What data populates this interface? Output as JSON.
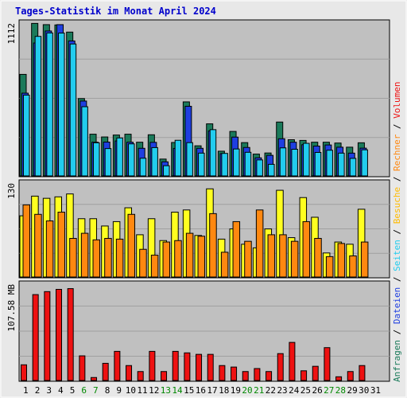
{
  "title": "Tages-Statistik im Monat April 2024",
  "colors": {
    "title": "#0000cc",
    "background": "#e8e8e8",
    "plot_background": "#c0c0c0",
    "grid": "#a0a0a0",
    "anfragen": "#1a7a5a",
    "dateien": "#1e3fe0",
    "seiten": "#22ccee",
    "besuche": "#ffff20",
    "rechner": "#ff8810",
    "volumen": "#ee1111",
    "weekday": "#000000",
    "weekend": "#008800"
  },
  "right_legend": [
    {
      "text": "Anfragen",
      "color": "#1a7a5a"
    },
    {
      "text": " / ",
      "color": "#000000"
    },
    {
      "text": "Dateien",
      "color": "#1e3fe0"
    },
    {
      "text": " / ",
      "color": "#000000"
    },
    {
      "text": "Seiten",
      "color": "#22ccee"
    },
    {
      "text": " / ",
      "color": "#000000"
    },
    {
      "text": "Besuche",
      "color": "#ffbb00"
    },
    {
      "text": " / ",
      "color": "#000000"
    },
    {
      "text": "Rechner",
      "color": "#ff8810"
    },
    {
      "text": " / ",
      "color": "#000000"
    },
    {
      "text": "Volumen",
      "color": "#ee1111"
    }
  ],
  "chart_data": {
    "type": "bar",
    "title": "Tages-Statistik im Monat April 2024",
    "days": [
      "1",
      "2",
      "3",
      "4",
      "5",
      "6",
      "7",
      "8",
      "9",
      "10",
      "11",
      "12",
      "13",
      "14",
      "15",
      "16",
      "17",
      "18",
      "19",
      "20",
      "21",
      "22",
      "23",
      "24",
      "25",
      "26",
      "27",
      "28",
      "29",
      "30",
      "31"
    ],
    "weekend_days": [
      "6",
      "7",
      "13",
      "14",
      "20",
      "21",
      "27",
      "28"
    ],
    "panels": [
      {
        "name": "top",
        "ymax_label": "1112",
        "ylim": [
          0,
          1112
        ],
        "series": [
          {
            "name": "Anfragen",
            "values": [
              735,
              1104,
              1095,
              1093,
              1041,
              560,
              302,
              282,
              296,
              302,
              244,
              298,
              122,
              242,
              536,
              218,
              377,
              179,
              322,
              241,
              158,
              166,
              390,
              262,
              257,
              244,
              244,
              238,
              208,
              240,
              0
            ]
          },
          {
            "name": "Dateien",
            "values": [
              599,
              962,
              1049,
              1095,
              977,
              542,
              244,
              245,
              253,
              244,
              200,
              243,
              102,
              199,
              504,
              200,
              326,
              161,
              281,
              206,
              131,
              149,
              269,
              244,
              226,
              216,
              224,
              208,
              165,
              201,
              0
            ]
          },
          {
            "name": "Seiten",
            "values": [
              585,
              1010,
              1035,
              1034,
              955,
              501,
              240,
              198,
              275,
              232,
              128,
              205,
              74,
              258,
              241,
              165,
              335,
              163,
              195,
              171,
              116,
              84,
              203,
              193,
              236,
              170,
              186,
              165,
              127,
              189,
              0
            ]
          }
        ]
      },
      {
        "name": "middle",
        "ymax_label": "130",
        "ylim": [
          0,
          130
        ],
        "series": [
          {
            "name": "Besuche",
            "values": [
              84,
              111,
              108,
              110,
              114,
              80,
              80,
              70,
              76,
              95,
              58,
              80,
              50,
              89,
              92,
              57,
              121,
              52,
              66,
              45,
              40,
              66,
              119,
              54,
              109,
              82,
              33,
              48,
              45,
              93,
              0
            ]
          },
          {
            "name": "Rechner",
            "values": [
              99,
              86,
              77,
              89,
              53,
              60,
              51,
              53,
              52,
              86,
              38,
              30,
              48,
              50,
              60,
              56,
              87,
              34,
              76,
              49,
              92,
              58,
              58,
              49,
              76,
              53,
              28,
              46,
              29,
              48,
              0
            ]
          }
        ]
      },
      {
        "name": "bottom",
        "ymax_label": "107.58 MB",
        "ylim": [
          0,
          130
        ],
        "series": [
          {
            "name": "Volumen",
            "values": [
              21,
              115,
              119,
              122,
              123,
              33,
              4,
              23,
              39,
              20,
              12,
              39,
              12,
              39,
              37,
              35,
              35,
              20,
              18,
              12,
              16,
              12,
              36,
              51,
              13,
              19,
              44,
              5,
              12,
              20,
              0
            ]
          }
        ]
      }
    ]
  }
}
